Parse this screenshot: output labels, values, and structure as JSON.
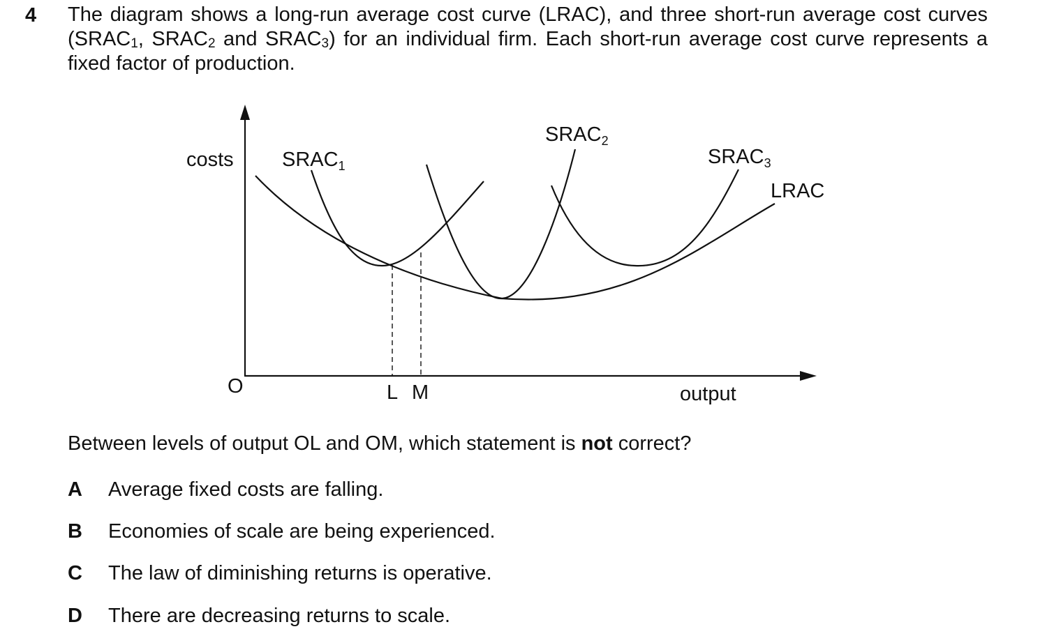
{
  "question": {
    "number": "4",
    "stem_part1": "The diagram shows a long-run average cost curve (LRAC), and three short-run average cost curves (SRAC",
    "sub1": "1",
    "stem_part2": ", SRAC",
    "sub2": "2",
    "stem_part3": " and SRAC",
    "sub3": "3",
    "stem_part4": ") for an individual firm. Each short-run average cost curve represents a fixed factor of production.",
    "prompt_before": "Between levels of output OL and OM, which statement is ",
    "prompt_bold": "not",
    "prompt_after": " correct?",
    "options": [
      {
        "letter": "A",
        "text": "Average fixed costs are falling."
      },
      {
        "letter": "B",
        "text": "Economies of scale are being experienced."
      },
      {
        "letter": "C",
        "text": "The law of diminishing returns is operative."
      },
      {
        "letter": "D",
        "text": "There are decreasing returns to scale."
      }
    ]
  },
  "diagram": {
    "y_axis_label": "costs",
    "x_axis_label": "output",
    "origin_label": "O",
    "point_l": "L",
    "point_m": "M",
    "srac_base": "SRAC",
    "srac1_sub": "1",
    "srac2_sub": "2",
    "srac3_sub": "3",
    "lrac_label": "LRAC"
  }
}
